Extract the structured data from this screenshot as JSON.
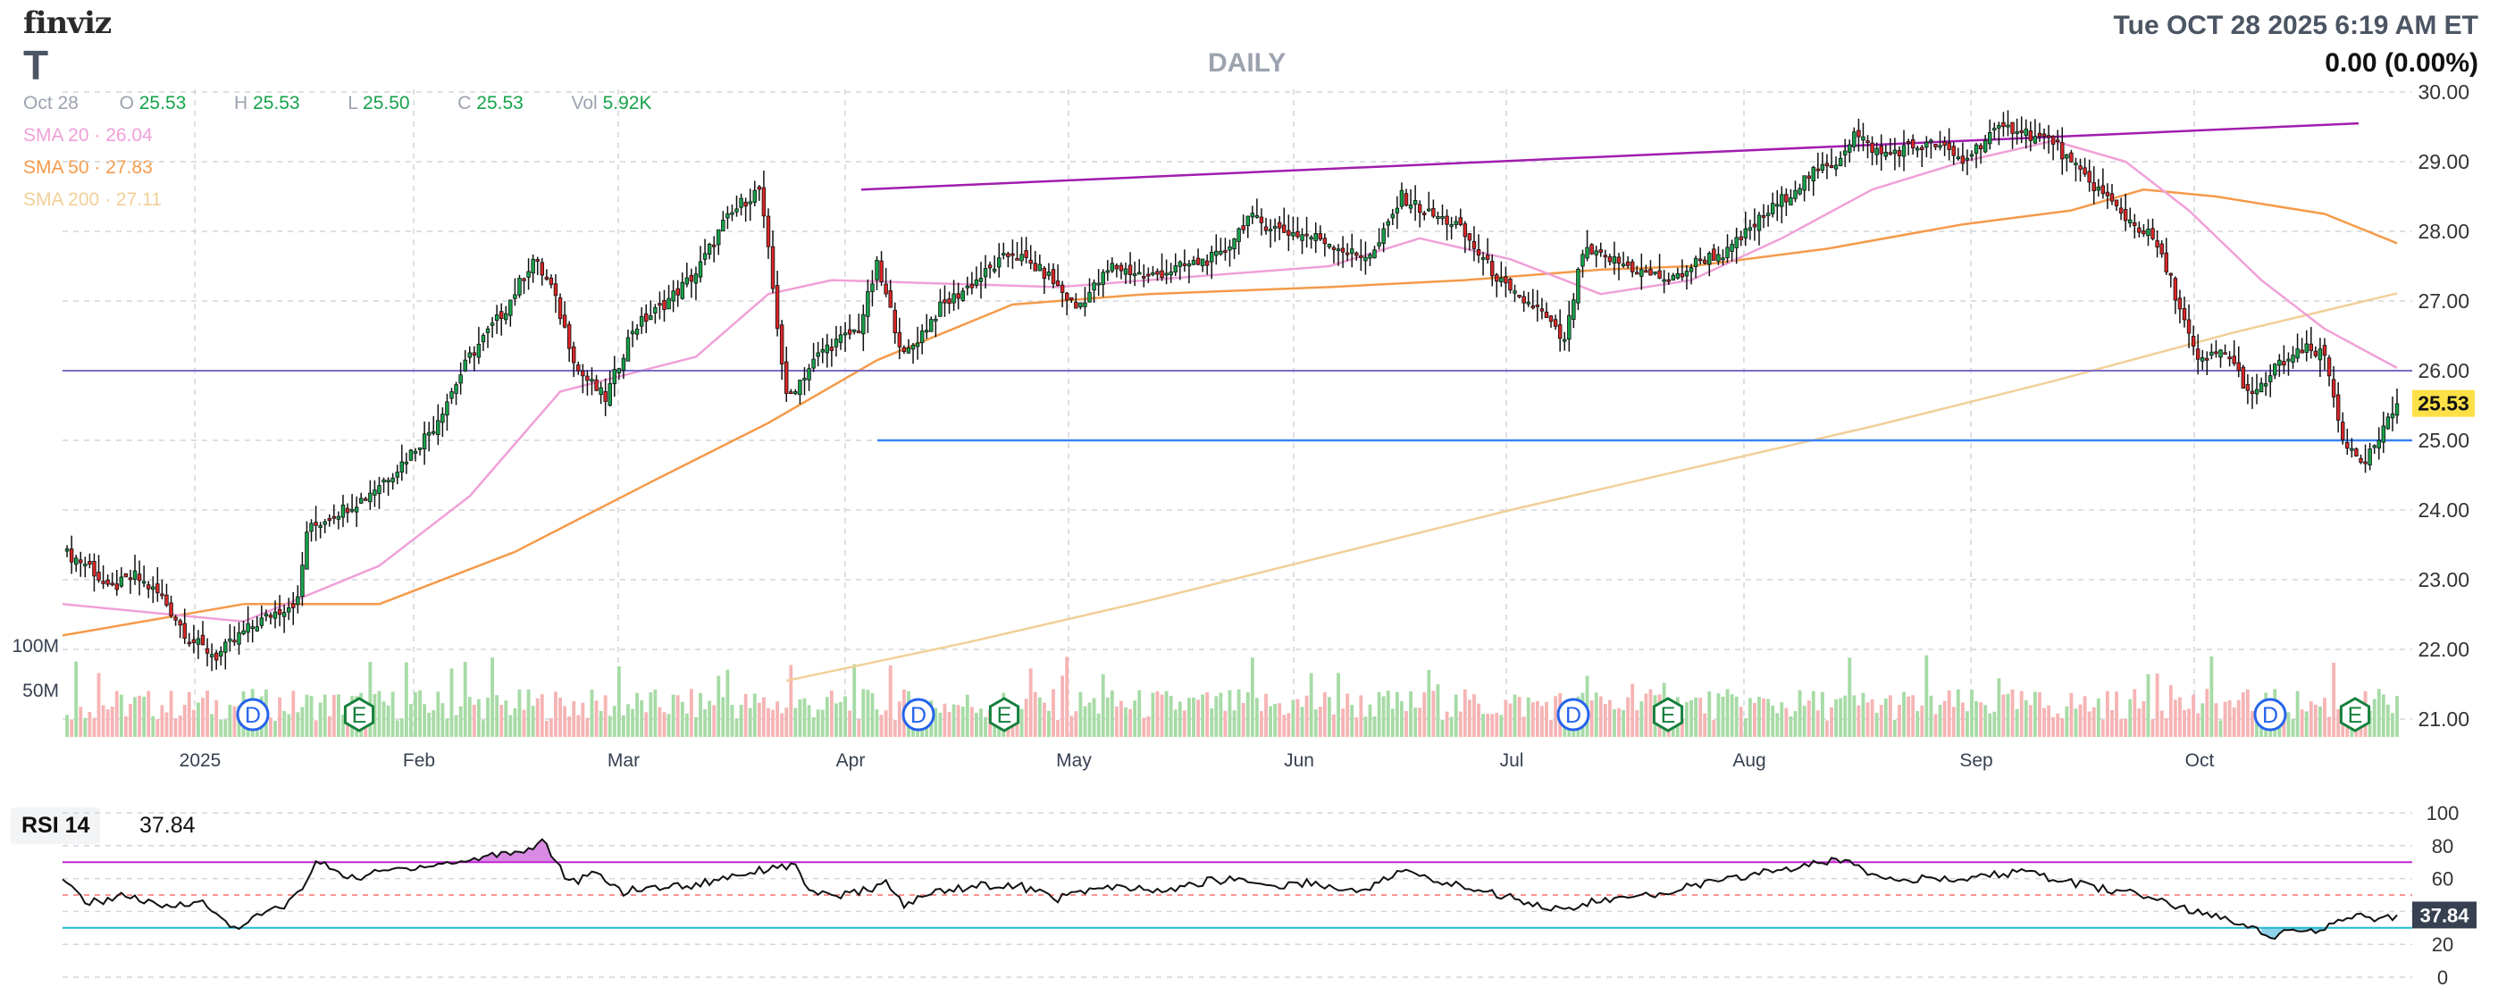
{
  "header": {
    "logo": "finviz",
    "ticker": "T",
    "timeframe": "DAILY",
    "datetime": "Tue OCT 28 2025 6:19 AM ET",
    "change": "0.00 (0.00%)"
  },
  "ohlc": {
    "date": "Oct 28",
    "o_label": "O",
    "open": "25.53",
    "h_label": "H",
    "high": "25.53",
    "l_label": "L",
    "low": "25.50",
    "c_label": "C",
    "close": "25.53",
    "vol_label": "Vol",
    "volume": "5.92K"
  },
  "sma_legend": [
    {
      "label": "SMA 20",
      "value": "26.04",
      "color": "#f0a0d8"
    },
    {
      "label": "SMA 50",
      "value": "27.83",
      "color": "#f59a4a"
    },
    {
      "label": "SMA 200",
      "value": "27.11",
      "color": "#f2cf98"
    }
  ],
  "colors": {
    "up": "#16a34a",
    "down": "#dc2626",
    "vol_up": "#a7dba6",
    "vol_down": "#f6b4b4",
    "trendline": "#a21caf",
    "support": "#3b82f6",
    "resistance": "#7c6bc9",
    "price_badge": "#fde047",
    "grid": "#d1d5db"
  },
  "chart_data": [
    {
      "type": "candlestick",
      "title": "DAILY",
      "xlabel": "",
      "ylabel": "",
      "ylim": [
        21.0,
        30.0
      ],
      "y_ticks": [
        "30.00",
        "29.00",
        "28.00",
        "27.00",
        "26.00",
        "25.00",
        "24.00",
        "23.00",
        "22.00",
        "21.00"
      ],
      "x_tick_labels": [
        "2025",
        "Feb",
        "Mar",
        "Apr",
        "May",
        "Jun",
        "Jul",
        "Aug",
        "Sep",
        "Oct"
      ],
      "last_price_label": "25.53",
      "volume_labels": [
        "100M",
        "50M"
      ],
      "event_markers": [
        {
          "label": "D",
          "month": "Jan"
        },
        {
          "label": "E",
          "month": "Jan"
        },
        {
          "label": "D",
          "month": "Apr"
        },
        {
          "label": "E",
          "month": "Apr"
        },
        {
          "label": "D",
          "month": "Jul"
        },
        {
          "label": "E",
          "month": "Jul"
        },
        {
          "label": "D",
          "month": "Oct"
        },
        {
          "label": "E",
          "month": "Oct"
        }
      ],
      "horizontal_lines": [
        26.0,
        25.0
      ],
      "trendline": {
        "from_date": "Apr",
        "from": 28.6,
        "to_date": "Oct 28",
        "to": 29.55
      },
      "close_path": [
        [
          0,
          23.4
        ],
        [
          6,
          23.2
        ],
        [
          10,
          22.85
        ],
        [
          16,
          23.05
        ],
        [
          22,
          22.75
        ],
        [
          28,
          22.15
        ],
        [
          34,
          21.9
        ],
        [
          40,
          22.25
        ],
        [
          46,
          22.5
        ],
        [
          52,
          22.7
        ],
        [
          54,
          23.7
        ],
        [
          60,
          23.95
        ],
        [
          66,
          24.15
        ],
        [
          74,
          24.6
        ],
        [
          82,
          25.2
        ],
        [
          90,
          26.2
        ],
        [
          98,
          26.9
        ],
        [
          104,
          27.6
        ],
        [
          108,
          27.2
        ],
        [
          114,
          26.0
        ],
        [
          120,
          25.6
        ],
        [
          126,
          26.6
        ],
        [
          132,
          26.9
        ],
        [
          140,
          27.4
        ],
        [
          146,
          28.1
        ],
        [
          150,
          28.4
        ],
        [
          154,
          28.6
        ],
        [
          156,
          27.7
        ],
        [
          160,
          25.6
        ],
        [
          168,
          26.3
        ],
        [
          176,
          26.6
        ],
        [
          180,
          27.5
        ],
        [
          186,
          26.2
        ],
        [
          194,
          26.9
        ],
        [
          202,
          27.3
        ],
        [
          210,
          27.7
        ],
        [
          218,
          27.35
        ],
        [
          224,
          26.9
        ],
        [
          232,
          27.5
        ],
        [
          240,
          27.35
        ],
        [
          248,
          27.5
        ],
        [
          256,
          27.65
        ],
        [
          262,
          28.2
        ],
        [
          270,
          28.0
        ],
        [
          278,
          27.9
        ],
        [
          286,
          27.65
        ],
        [
          290,
          27.7
        ],
        [
          296,
          28.5
        ],
        [
          302,
          28.25
        ],
        [
          308,
          28.1
        ],
        [
          314,
          27.6
        ],
        [
          320,
          27.1
        ],
        [
          326,
          26.9
        ],
        [
          332,
          26.4
        ],
        [
          336,
          27.7
        ],
        [
          342,
          27.6
        ],
        [
          350,
          27.4
        ],
        [
          356,
          27.3
        ],
        [
          362,
          27.6
        ],
        [
          368,
          27.7
        ],
        [
          374,
          28.1
        ],
        [
          380,
          28.45
        ],
        [
          386,
          28.8
        ],
        [
          392,
          29.0
        ],
        [
          396,
          29.4
        ],
        [
          402,
          29.1
        ],
        [
          408,
          29.2
        ],
        [
          414,
          29.25
        ],
        [
          420,
          29.0
        ],
        [
          426,
          29.4
        ],
        [
          432,
          29.5
        ],
        [
          436,
          29.35
        ],
        [
          440,
          29.3
        ],
        [
          444,
          28.95
        ],
        [
          450,
          28.6
        ],
        [
          456,
          28.2
        ],
        [
          462,
          27.9
        ],
        [
          466,
          27.3
        ],
        [
          468,
          26.9
        ],
        [
          472,
          26.1
        ],
        [
          478,
          26.3
        ],
        [
          484,
          25.6
        ],
        [
          490,
          26.1
        ],
        [
          496,
          26.3
        ],
        [
          500,
          26.2
        ],
        [
          504,
          25.05
        ],
        [
          508,
          24.6
        ],
        [
          512,
          25.0
        ],
        [
          516,
          25.53
        ]
      ],
      "sma20_path": [
        [
          0,
          22.65
        ],
        [
          40,
          22.4
        ],
        [
          70,
          23.2
        ],
        [
          90,
          24.2
        ],
        [
          110,
          25.7
        ],
        [
          140,
          26.2
        ],
        [
          156,
          27.1
        ],
        [
          170,
          27.3
        ],
        [
          220,
          27.2
        ],
        [
          280,
          27.5
        ],
        [
          300,
          27.9
        ],
        [
          320,
          27.6
        ],
        [
          340,
          27.1
        ],
        [
          360,
          27.3
        ],
        [
          380,
          27.9
        ],
        [
          400,
          28.6
        ],
        [
          420,
          29.0
        ],
        [
          440,
          29.3
        ],
        [
          456,
          29.0
        ],
        [
          470,
          28.3
        ],
        [
          486,
          27.3
        ],
        [
          500,
          26.6
        ],
        [
          516,
          26.04
        ]
      ],
      "sma50_path": [
        [
          0,
          22.2
        ],
        [
          40,
          22.65
        ],
        [
          70,
          22.65
        ],
        [
          100,
          23.4
        ],
        [
          130,
          24.4
        ],
        [
          156,
          25.25
        ],
        [
          180,
          26.15
        ],
        [
          210,
          26.95
        ],
        [
          240,
          27.1
        ],
        [
          280,
          27.2
        ],
        [
          310,
          27.3
        ],
        [
          340,
          27.45
        ],
        [
          360,
          27.5
        ],
        [
          390,
          27.75
        ],
        [
          420,
          28.1
        ],
        [
          444,
          28.3
        ],
        [
          460,
          28.6
        ],
        [
          476,
          28.5
        ],
        [
          500,
          28.25
        ],
        [
          516,
          27.83
        ]
      ],
      "sma200_path": [
        [
          160,
          21.55
        ],
        [
          200,
          22.1
        ],
        [
          240,
          22.7
        ],
        [
          280,
          23.35
        ],
        [
          320,
          24.0
        ],
        [
          360,
          24.6
        ],
        [
          400,
          25.2
        ],
        [
          440,
          25.85
        ],
        [
          480,
          26.55
        ],
        [
          516,
          27.11
        ]
      ]
    },
    {
      "type": "line",
      "title": "RSI 14",
      "xlabel": "",
      "ylabel": "",
      "ylim": [
        0,
        100
      ],
      "y_ticks": [
        "100",
        "80",
        "60",
        "40",
        "20",
        "0"
      ],
      "bands": [
        70,
        30
      ],
      "current_label": "37.84",
      "current": 37.84,
      "path": [
        [
          0,
          58
        ],
        [
          6,
          45
        ],
        [
          14,
          50
        ],
        [
          22,
          42
        ],
        [
          30,
          47
        ],
        [
          34,
          38
        ],
        [
          38,
          30
        ],
        [
          44,
          38
        ],
        [
          50,
          45
        ],
        [
          54,
          58
        ],
        [
          56,
          70
        ],
        [
          60,
          66
        ],
        [
          64,
          60
        ],
        [
          72,
          65
        ],
        [
          80,
          68
        ],
        [
          88,
          70
        ],
        [
          96,
          75
        ],
        [
          104,
          78
        ],
        [
          106,
          85
        ],
        [
          112,
          57
        ],
        [
          118,
          63
        ],
        [
          124,
          52
        ],
        [
          132,
          55
        ],
        [
          140,
          56
        ],
        [
          148,
          62
        ],
        [
          154,
          65
        ],
        [
          158,
          68
        ],
        [
          162,
          67
        ],
        [
          166,
          50
        ],
        [
          174,
          50
        ],
        [
          182,
          57
        ],
        [
          186,
          44
        ],
        [
          194,
          53
        ],
        [
          204,
          56
        ],
        [
          212,
          55
        ],
        [
          220,
          48
        ],
        [
          228,
          54
        ],
        [
          236,
          54
        ],
        [
          244,
          52
        ],
        [
          252,
          58
        ],
        [
          260,
          60
        ],
        [
          268,
          55
        ],
        [
          276,
          58
        ],
        [
          284,
          52
        ],
        [
          290,
          56
        ],
        [
          296,
          65
        ],
        [
          304,
          58
        ],
        [
          312,
          54
        ],
        [
          318,
          50
        ],
        [
          324,
          46
        ],
        [
          332,
          40
        ],
        [
          338,
          46
        ],
        [
          346,
          48
        ],
        [
          352,
          50
        ],
        [
          360,
          56
        ],
        [
          368,
          59
        ],
        [
          376,
          64
        ],
        [
          384,
          67
        ],
        [
          390,
          70
        ],
        [
          394,
          72
        ],
        [
          400,
          63
        ],
        [
          408,
          60
        ],
        [
          416,
          59
        ],
        [
          424,
          61
        ],
        [
          432,
          64
        ],
        [
          440,
          60
        ],
        [
          448,
          55
        ],
        [
          456,
          52
        ],
        [
          464,
          47
        ],
        [
          470,
          40
        ],
        [
          476,
          38
        ],
        [
          482,
          33
        ],
        [
          488,
          25
        ],
        [
          494,
          28
        ],
        [
          500,
          29
        ],
        [
          506,
          37
        ],
        [
          512,
          35
        ],
        [
          516,
          37.84
        ]
      ]
    }
  ]
}
